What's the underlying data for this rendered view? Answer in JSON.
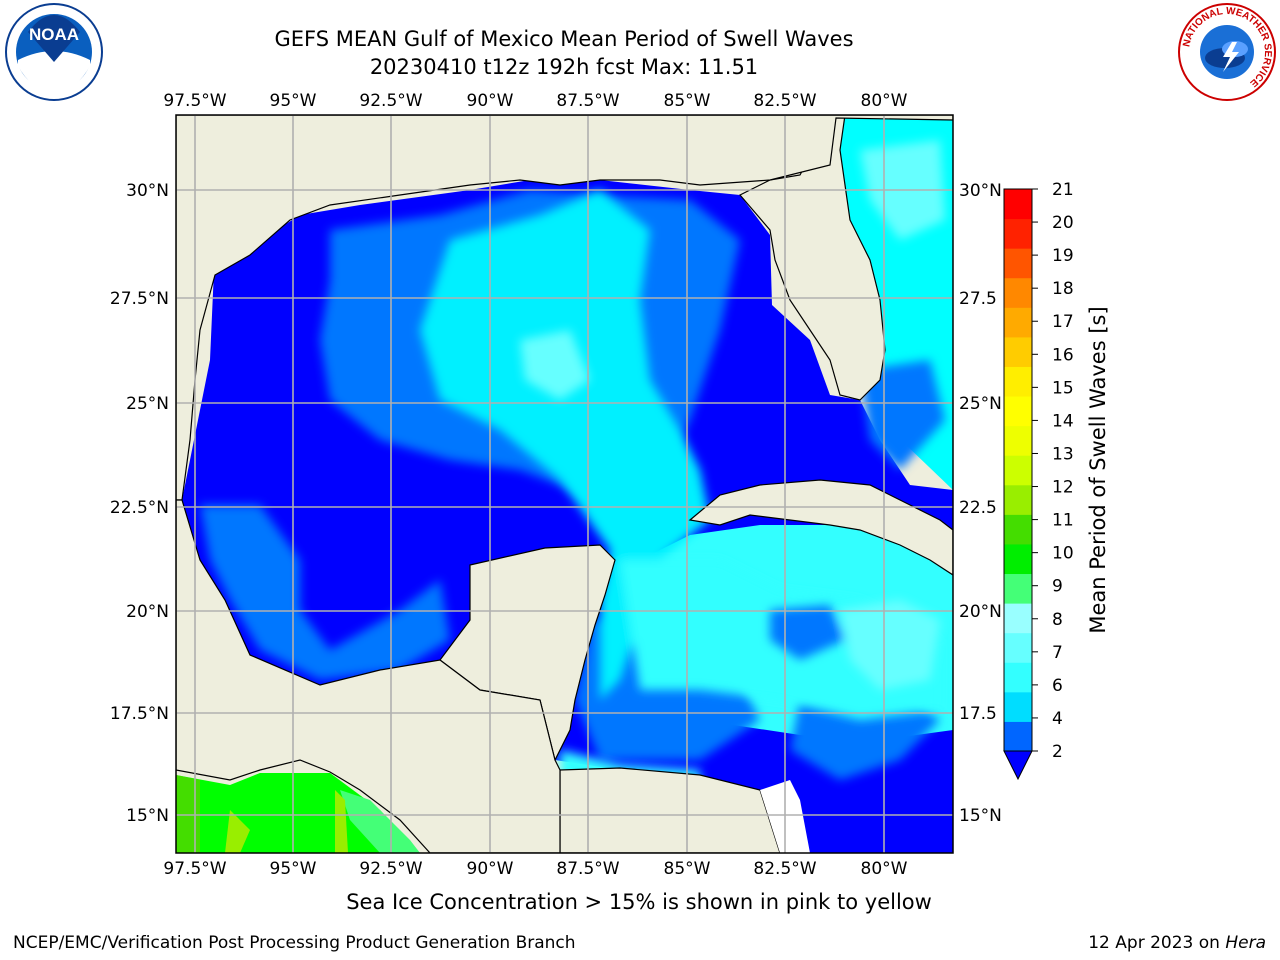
{
  "title": {
    "line1": "GEFS MEAN Gulf of Mexico Mean Period of Swell Waves",
    "line2": "20230410 t12z 192h fcst   Max: 11.51"
  },
  "map": {
    "lon_ticks": [
      "97.5°W",
      "95°W",
      "92.5°W",
      "90°W",
      "87.5°W",
      "85°W",
      "82.5°W",
      "80°W"
    ],
    "lat_ticks_left": [
      "30°N",
      "27.5°N",
      "25°N",
      "22.5°N",
      "20°N",
      "17.5°N",
      "15°N"
    ],
    "lat_ticks_right": [
      "30°N",
      "27.5",
      "25°N",
      "22.5",
      "20°N",
      "17.5",
      "15°N"
    ],
    "land_color": "#eeeedd",
    "grid_color": "#b0b0b0"
  },
  "colorbar": {
    "label": "Mean Period of Swell Waves [s]",
    "ticks": [
      "2",
      "4",
      "6",
      "7",
      "8",
      "9",
      "10",
      "11",
      "12",
      "13",
      "14",
      "15",
      "16",
      "17",
      "18",
      "19",
      "20",
      "21"
    ],
    "colors": [
      "#0066ff",
      "#00ddff",
      "#33ffff",
      "#66ffff",
      "#99ffff",
      "#44ff77",
      "#00ee00",
      "#44dd00",
      "#99ee00",
      "#ccff00",
      "#eeff00",
      "#ffff00",
      "#ffee00",
      "#ffcc00",
      "#ffaa00",
      "#ff8800",
      "#ff5500",
      "#ff2200",
      "#ff0000"
    ],
    "under_color": "#0000ff"
  },
  "logos": {
    "noaa_text": "NOAA",
    "nws_ring_text": "NATIONAL WEATHER SERVICE"
  },
  "ice_note": "Sea Ice Concentration > 15% is shown in pink to yellow",
  "footer": {
    "left": "NCEP/EMC/Verification Post Processing Product Generation Branch",
    "right_date": "12 Apr 2023 on ",
    "right_host": "Hera"
  }
}
